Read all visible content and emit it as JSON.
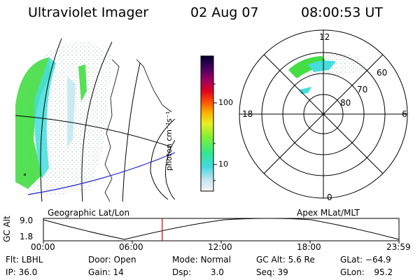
{
  "header": {
    "title": "Ultraviolet Imager",
    "date": "02 Aug 07",
    "time": "08:00:53 UT"
  },
  "colorbar": {
    "unit_label": "photon cm⁻²s⁻¹",
    "ticks": [
      "100",
      "10"
    ]
  },
  "geo_map": {
    "label": "Geographic Lat/Lon"
  },
  "polar_map": {
    "label": "Apex MLat/MLT",
    "mlt_labels": {
      "top": "12",
      "left": "18",
      "right": "6",
      "bottom": "0"
    },
    "lat_labels": [
      "60",
      "70",
      "80"
    ]
  },
  "altitude_plot": {
    "ylabel": "GC Alt",
    "y_ticks": [
      "9.0",
      "1.8"
    ],
    "x_ticks": [
      "00:00",
      "06:00",
      "12:00",
      "18:00",
      "23:59"
    ],
    "current_time_hours": 8.01
  },
  "info": {
    "filter_label": "Flt:",
    "filter": "LBHL",
    "ip_label": "IP:",
    "ip": "36.0",
    "door_label": "Door:",
    "door": "Open",
    "gain_label": "Gain:",
    "gain": "14",
    "mode_label": "Mode:",
    "mode": "Normal",
    "dsp_label": "Dsp:",
    "dsp": "3.0",
    "gcalt_label": "GC Alt:",
    "gcalt": "5.6 Re",
    "seq_label": "Seq:",
    "seq": "39",
    "glat_label": "GLat:",
    "glat": "−64.9",
    "glon_label": "GLon:",
    "glon": "95.2"
  },
  "colors": {
    "red_marker": "#dd0000",
    "blue_line": "#1a1ad0",
    "aurora_green": "#44dd44",
    "aurora_cyan": "#44dddd"
  }
}
